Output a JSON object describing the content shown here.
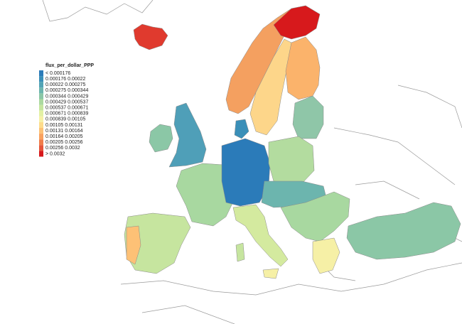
{
  "legend": {
    "title": "flux_per_dollar_PPP",
    "items": [
      {
        "label": "< 0.000176",
        "color": "#2b7bb9"
      },
      {
        "label": "0.000176 0.00022",
        "color": "#3a8fb8"
      },
      {
        "label": "0.00022 0.000275",
        "color": "#52a3b5"
      },
      {
        "label": "0.000275 0.000344",
        "color": "#6cb5ae"
      },
      {
        "label": "0.000344 0.000429",
        "color": "#8bc7a6"
      },
      {
        "label": "0.000429 0.000537",
        "color": "#abd9a0"
      },
      {
        "label": "0.000537 0.000671",
        "color": "#c6e59f"
      },
      {
        "label": "0.000671 0.000839",
        "color": "#e2f0a3"
      },
      {
        "label": "0.000839 0.00105",
        "color": "#f6f0a6"
      },
      {
        "label": "0.00105 0.00131",
        "color": "#fddc8c"
      },
      {
        "label": "0.00131 0.00164",
        "color": "#fdc176"
      },
      {
        "label": "0.00164 0.00205",
        "color": "#f9a15e"
      },
      {
        "label": "0.00205 0.00256",
        "color": "#f07d4a"
      },
      {
        "label": "0.00256 0.0032",
        "color": "#e5553a"
      },
      {
        "label": "> 0.0032",
        "color": "#d7191c"
      }
    ]
  }
}
